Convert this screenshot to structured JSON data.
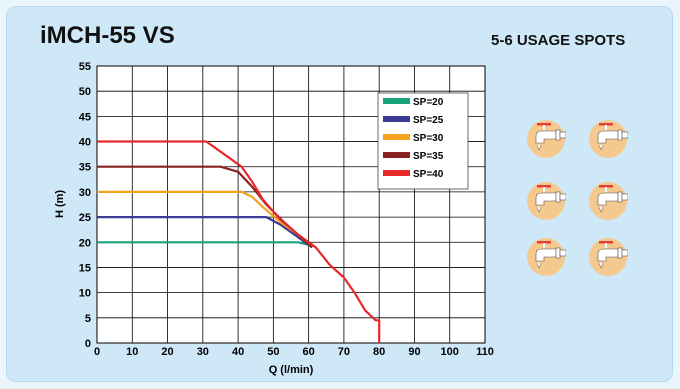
{
  "header": {
    "title": "iMCH-55 VS",
    "subtitle": "5-6 USAGE SPOTS"
  },
  "usage_spots_icon": "faucet-icon",
  "usage_spots_count": 6,
  "colors": {
    "background": "#cfe8f8",
    "faucet_circle": "#f5c98e",
    "faucet_handle": "#e0403a"
  },
  "chart_data": {
    "type": "line",
    "xlabel": "Q (l/min)",
    "ylabel": "H (m)",
    "xlim": [
      0,
      110
    ],
    "ylim": [
      0,
      55
    ],
    "xticks": [
      0,
      10,
      20,
      30,
      40,
      50,
      60,
      70,
      80,
      90,
      100,
      110
    ],
    "yticks": [
      0,
      5,
      10,
      15,
      20,
      25,
      30,
      35,
      40,
      45,
      50,
      55
    ],
    "grid": true,
    "legend_position": "top-right",
    "series": [
      {
        "name": "SP=20",
        "color": "#1aa37a",
        "points": [
          [
            0,
            20
          ],
          [
            57,
            20
          ],
          [
            60,
            19.5
          ],
          [
            61,
            19
          ]
        ]
      },
      {
        "name": "SP=25",
        "color": "#3b3a94",
        "points": [
          [
            0,
            25
          ],
          [
            48,
            25
          ],
          [
            52,
            23.5
          ],
          [
            57,
            21
          ],
          [
            61,
            19
          ]
        ]
      },
      {
        "name": "SP=30",
        "color": "#f4a21c",
        "points": [
          [
            0,
            30
          ],
          [
            41,
            30
          ],
          [
            44,
            29
          ],
          [
            47,
            27
          ],
          [
            52,
            24
          ],
          [
            57,
            21.5
          ],
          [
            61,
            19
          ]
        ]
      },
      {
        "name": "SP=35",
        "color": "#8b2121",
        "points": [
          [
            0,
            35
          ],
          [
            35,
            35
          ],
          [
            40,
            34
          ],
          [
            44,
            31
          ],
          [
            48,
            27.5
          ],
          [
            53,
            24
          ],
          [
            57,
            21.5
          ],
          [
            61,
            19
          ]
        ]
      },
      {
        "name": "SP=40",
        "color": "#e8282b",
        "points": [
          [
            0,
            40
          ],
          [
            31,
            40
          ],
          [
            41,
            35
          ],
          [
            44,
            32
          ],
          [
            47,
            28.5
          ],
          [
            52,
            24.5
          ],
          [
            57,
            21.5
          ],
          [
            62,
            19
          ],
          [
            66,
            15.5
          ],
          [
            70,
            13
          ],
          [
            73,
            10
          ],
          [
            76,
            6.5
          ],
          [
            79,
            4.5
          ],
          [
            80,
            4.5
          ],
          [
            80,
            0
          ]
        ]
      }
    ]
  }
}
